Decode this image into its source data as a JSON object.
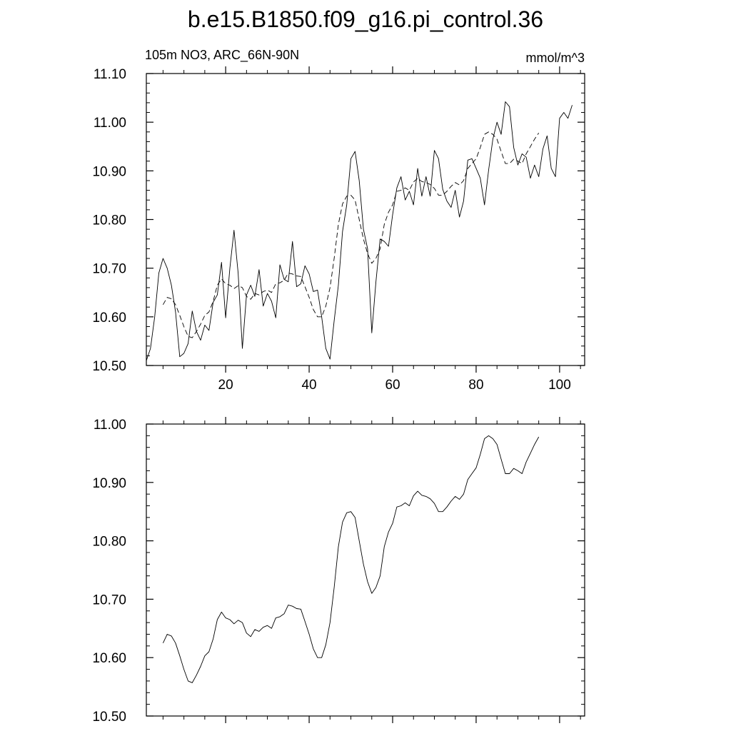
{
  "title": "b.e15.B1850.f09_g16.pi_control.36",
  "chart_data": [
    {
      "type": "line",
      "left_label": "105m NO3, ARC_66N-90N",
      "right_label": "mmol/m^3",
      "xlim": [
        1,
        106
      ],
      "ylim": [
        10.5,
        11.1
      ],
      "x_ticks": [
        20,
        40,
        60,
        80,
        100
      ],
      "x_tick_labels": [
        "20",
        "40",
        "60",
        "80",
        "100"
      ],
      "y_ticks": [
        10.5,
        10.6,
        10.7,
        10.8,
        10.9,
        11.0,
        11.1
      ],
      "y_tick_labels": [
        "10.50",
        "10.60",
        "10.70",
        "10.80",
        "10.90",
        "11.00",
        "11.10"
      ],
      "series": [
        {
          "style": "solid",
          "x_start": 1,
          "values": [
            10.51,
            10.535,
            10.6,
            10.69,
            10.72,
            10.7,
            10.665,
            10.61,
            10.518,
            10.525,
            10.545,
            10.612,
            10.57,
            10.552,
            10.583,
            10.572,
            10.63,
            10.645,
            10.712,
            10.598,
            10.7,
            10.778,
            10.69,
            10.535,
            10.645,
            10.665,
            10.642,
            10.697,
            10.622,
            10.648,
            10.632,
            10.598,
            10.707,
            10.677,
            10.672,
            10.755,
            10.662,
            10.668,
            10.705,
            10.688,
            10.652,
            10.655,
            10.6,
            10.535,
            10.513,
            10.592,
            10.665,
            10.775,
            10.83,
            10.925,
            10.94,
            10.88,
            10.78,
            10.74,
            10.567,
            10.672,
            10.76,
            10.755,
            10.745,
            10.81,
            10.865,
            10.888,
            10.84,
            10.858,
            10.83,
            10.905,
            10.848,
            10.888,
            10.848,
            10.942,
            10.925,
            10.862,
            10.838,
            10.825,
            10.86,
            10.805,
            10.838,
            10.922,
            10.925,
            10.905,
            10.885,
            10.83,
            10.902,
            10.965,
            11.0,
            10.975,
            11.042,
            11.032,
            10.948,
            10.912,
            10.935,
            10.928,
            10.885,
            10.912,
            10.888,
            10.945,
            10.972,
            10.905,
            10.888,
            11.008,
            11.02,
            11.008,
            11.035
          ]
        },
        {
          "style": "dashed",
          "x_start": 5,
          "values": [
            10.625,
            10.64,
            10.637,
            10.625,
            10.603,
            10.58,
            10.56,
            10.557,
            10.57,
            10.585,
            10.603,
            10.61,
            10.632,
            10.665,
            10.678,
            10.668,
            10.665,
            10.658,
            10.664,
            10.66,
            10.642,
            10.636,
            10.648,
            10.645,
            10.652,
            10.655,
            10.65,
            10.668,
            10.67,
            10.675,
            10.69,
            10.688,
            10.684,
            10.683,
            10.662,
            10.64,
            10.615,
            10.6,
            10.6,
            10.622,
            10.66,
            10.72,
            10.79,
            10.832,
            10.848,
            10.85,
            10.84,
            10.8,
            10.76,
            10.73,
            10.71,
            10.72,
            10.74,
            10.79,
            10.815,
            10.83,
            10.858,
            10.86,
            10.865,
            10.86,
            10.877,
            10.885,
            10.878,
            10.876,
            10.872,
            10.864,
            10.85,
            10.85,
            10.858,
            10.868,
            10.876,
            10.871,
            10.88,
            10.905,
            10.915,
            10.925,
            10.948,
            10.975,
            10.98,
            10.975,
            10.965,
            10.94,
            10.915,
            10.915,
            10.924,
            10.92,
            10.915,
            10.935,
            10.95,
            10.965,
            10.978
          ]
        }
      ]
    },
    {
      "type": "line",
      "xlim": [
        1,
        106
      ],
      "ylim": [
        10.5,
        11.0
      ],
      "x_ticks": [
        20,
        40,
        60,
        80,
        100
      ],
      "y_ticks": [
        10.5,
        10.6,
        10.7,
        10.8,
        10.9,
        11.0
      ],
      "y_tick_labels": [
        "10.50",
        "10.60",
        "10.70",
        "10.80",
        "10.90",
        "11.00"
      ],
      "series": [
        {
          "style": "solid",
          "x_start": 5,
          "values": [
            10.625,
            10.64,
            10.637,
            10.625,
            10.603,
            10.58,
            10.56,
            10.557,
            10.57,
            10.585,
            10.603,
            10.61,
            10.632,
            10.665,
            10.678,
            10.668,
            10.665,
            10.658,
            10.664,
            10.66,
            10.642,
            10.636,
            10.648,
            10.645,
            10.652,
            10.655,
            10.65,
            10.668,
            10.67,
            10.675,
            10.69,
            10.688,
            10.684,
            10.683,
            10.662,
            10.64,
            10.615,
            10.6,
            10.6,
            10.622,
            10.66,
            10.72,
            10.79,
            10.832,
            10.848,
            10.85,
            10.84,
            10.8,
            10.76,
            10.73,
            10.71,
            10.72,
            10.74,
            10.79,
            10.815,
            10.83,
            10.858,
            10.86,
            10.865,
            10.86,
            10.877,
            10.885,
            10.878,
            10.876,
            10.872,
            10.864,
            10.85,
            10.85,
            10.858,
            10.868,
            10.876,
            10.871,
            10.88,
            10.905,
            10.915,
            10.925,
            10.948,
            10.975,
            10.98,
            10.975,
            10.965,
            10.94,
            10.915,
            10.915,
            10.924,
            10.92,
            10.915,
            10.935,
            10.95,
            10.965,
            10.978
          ]
        }
      ]
    }
  ]
}
